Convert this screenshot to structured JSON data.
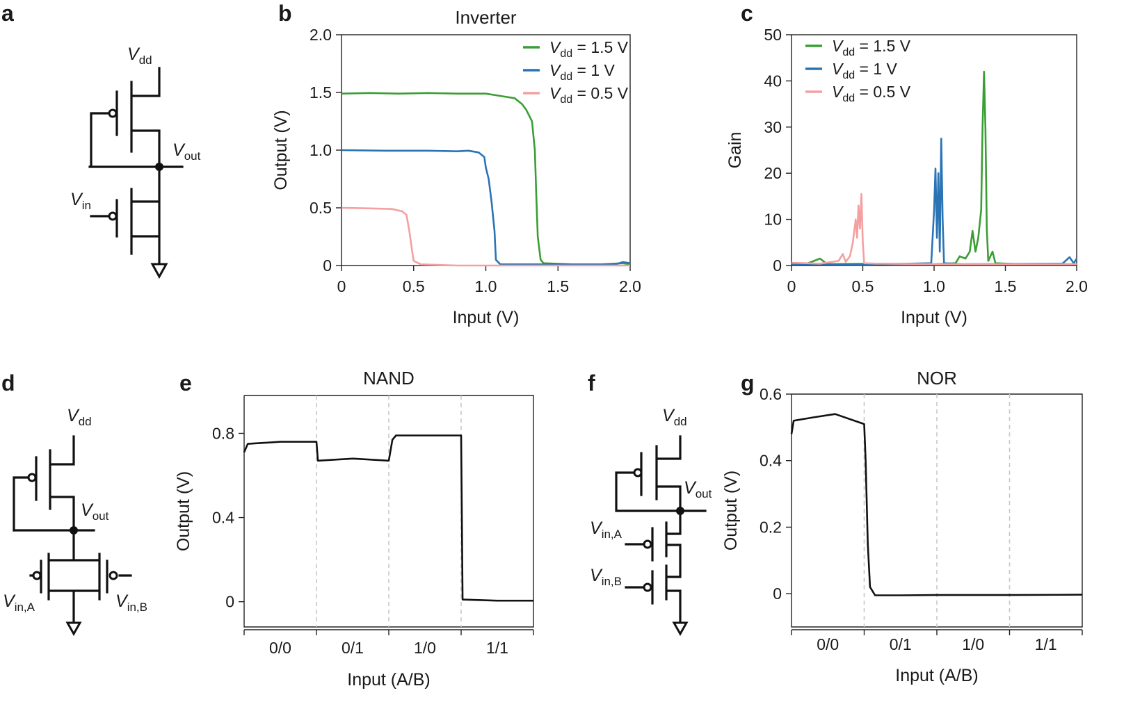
{
  "panels": {
    "a": "a",
    "b": "b",
    "c": "c",
    "d": "d",
    "e": "e",
    "f": "f",
    "g": "g"
  },
  "circuits": {
    "vdd": "V",
    "vdd_sub": "dd",
    "vout": "V",
    "vout_sub": "out",
    "vin": "V",
    "vin_sub": "in",
    "vin_a_sub": "in,A",
    "vin_b_sub": "in,B"
  },
  "colors": {
    "green": "#3a9e34",
    "blue": "#2a74b4",
    "pink": "#f4a0a0",
    "black": "#111111"
  },
  "chart_data": [
    {
      "id": "b",
      "type": "line",
      "title": "Inverter",
      "xlabel": "Input (V)",
      "ylabel": "Output (V)",
      "xlim": [
        0,
        2.0
      ],
      "ylim": [
        0,
        2.0
      ],
      "xticks": [
        "0",
        "0.5",
        "1.0",
        "1.5",
        "2.0"
      ],
      "yticks": [
        "0",
        "0.5",
        "1.0",
        "1.5",
        "2.0"
      ],
      "legend_position": "top-right",
      "series": [
        {
          "name": "V",
          "name_sub": "dd",
          "name_tail": " = 1.5 V",
          "color": "#3a9e34",
          "points": [
            [
              0,
              1.49
            ],
            [
              0.2,
              1.495
            ],
            [
              0.4,
              1.49
            ],
            [
              0.6,
              1.495
            ],
            [
              0.8,
              1.49
            ],
            [
              1.0,
              1.49
            ],
            [
              1.1,
              1.47
            ],
            [
              1.2,
              1.45
            ],
            [
              1.25,
              1.4
            ],
            [
              1.28,
              1.35
            ],
            [
              1.32,
              1.25
            ],
            [
              1.34,
              1.0
            ],
            [
              1.35,
              0.6
            ],
            [
              1.36,
              0.25
            ],
            [
              1.38,
              0.05
            ],
            [
              1.4,
              0.02
            ],
            [
              1.6,
              0.01
            ],
            [
              1.8,
              0.01
            ],
            [
              1.95,
              0.02
            ],
            [
              2.0,
              0.01
            ]
          ]
        },
        {
          "name": "V",
          "name_sub": "dd",
          "name_tail": " = 1 V",
          "color": "#2a74b4",
          "points": [
            [
              0,
              1.0
            ],
            [
              0.3,
              0.995
            ],
            [
              0.6,
              0.995
            ],
            [
              0.8,
              0.99
            ],
            [
              0.88,
              0.995
            ],
            [
              0.95,
              0.98
            ],
            [
              0.99,
              0.94
            ],
            [
              1.0,
              0.85
            ],
            [
              1.02,
              0.75
            ],
            [
              1.04,
              0.55
            ],
            [
              1.06,
              0.3
            ],
            [
              1.07,
              0.05
            ],
            [
              1.1,
              0.01
            ],
            [
              1.3,
              0.01
            ],
            [
              1.6,
              0.01
            ],
            [
              1.9,
              0.01
            ],
            [
              1.95,
              0.03
            ],
            [
              2.0,
              0.02
            ]
          ]
        },
        {
          "name": "V",
          "name_sub": "dd",
          "name_tail": " = 0.5 V",
          "color": "#f4a0a0",
          "points": [
            [
              0,
              0.5
            ],
            [
              0.2,
              0.495
            ],
            [
              0.35,
              0.49
            ],
            [
              0.42,
              0.47
            ],
            [
              0.45,
              0.44
            ],
            [
              0.47,
              0.3
            ],
            [
              0.49,
              0.12
            ],
            [
              0.5,
              0.04
            ],
            [
              0.55,
              0.01
            ],
            [
              0.8,
              0.0
            ],
            [
              1.2,
              0.0
            ],
            [
              1.6,
              0.0
            ],
            [
              2.0,
              0.0
            ]
          ]
        }
      ]
    },
    {
      "id": "c",
      "type": "line",
      "title": "",
      "xlabel": "Input (V)",
      "ylabel": "Gain",
      "xlim": [
        0,
        2.0
      ],
      "ylim": [
        0,
        50
      ],
      "xticks": [
        "0",
        "0.5",
        "1.0",
        "1.5",
        "2.0"
      ],
      "yticks": [
        "0",
        "10",
        "20",
        "30",
        "40",
        "50"
      ],
      "legend_position": "top-left",
      "series": [
        {
          "name": "V",
          "name_sub": "dd",
          "name_tail": " = 1.5 V",
          "color": "#3a9e34",
          "points": [
            [
              0,
              0.5
            ],
            [
              0.1,
              0.3
            ],
            [
              0.2,
              1.5
            ],
            [
              0.25,
              0.3
            ],
            [
              0.6,
              0.4
            ],
            [
              1.0,
              0.3
            ],
            [
              1.15,
              0.5
            ],
            [
              1.18,
              2.0
            ],
            [
              1.22,
              1.5
            ],
            [
              1.25,
              3.0
            ],
            [
              1.27,
              7.5
            ],
            [
              1.29,
              3.0
            ],
            [
              1.31,
              6.0
            ],
            [
              1.33,
              12.0
            ],
            [
              1.34,
              30.0
            ],
            [
              1.35,
              42.0
            ],
            [
              1.36,
              30.0
            ],
            [
              1.37,
              8.0
            ],
            [
              1.38,
              1.0
            ],
            [
              1.41,
              3.0
            ],
            [
              1.43,
              0.5
            ],
            [
              1.6,
              0.3
            ],
            [
              2.0,
              0.3
            ]
          ]
        },
        {
          "name": "V",
          "name_sub": "dd",
          "name_tail": " = 1 V",
          "color": "#2a74b4",
          "points": [
            [
              0,
              0.3
            ],
            [
              0.5,
              0.2
            ],
            [
              0.98,
              0.5
            ],
            [
              1.0,
              12.0
            ],
            [
              1.01,
              21.0
            ],
            [
              1.02,
              6.0
            ],
            [
              1.03,
              20.0
            ],
            [
              1.04,
              3.0
            ],
            [
              1.05,
              27.5
            ],
            [
              1.06,
              10.0
            ],
            [
              1.07,
              0.5
            ],
            [
              1.2,
              0.3
            ],
            [
              1.9,
              0.4
            ],
            [
              1.95,
              1.8
            ],
            [
              1.98,
              0.5
            ],
            [
              2.0,
              1.5
            ]
          ]
        },
        {
          "name": "V",
          "name_sub": "dd",
          "name_tail": " = 0.5 V",
          "color": "#f4a0a0",
          "points": [
            [
              0,
              0.6
            ],
            [
              0.2,
              0.4
            ],
            [
              0.33,
              1.0
            ],
            [
              0.36,
              2.5
            ],
            [
              0.38,
              0.8
            ],
            [
              0.41,
              2.0
            ],
            [
              0.43,
              5.0
            ],
            [
              0.45,
              10.0
            ],
            [
              0.46,
              6.0
            ],
            [
              0.47,
              13.0
            ],
            [
              0.48,
              8.0
            ],
            [
              0.49,
              15.5
            ],
            [
              0.5,
              5.0
            ],
            [
              0.51,
              0.5
            ],
            [
              0.6,
              0.4
            ],
            [
              1.0,
              0.3
            ],
            [
              2.0,
              0.3
            ]
          ]
        }
      ]
    },
    {
      "id": "e",
      "type": "line",
      "title": "NAND",
      "xlabel": "Input (A/B)",
      "ylabel": "Output (V)",
      "xlim": [
        0,
        4
      ],
      "ylim": [
        -0.12,
        0.98
      ],
      "yticks": [
        "0",
        "0.4",
        "0.8"
      ],
      "categories": [
        "0/0",
        "0/1",
        "1/0",
        "1/1"
      ],
      "series": [
        {
          "name": "output",
          "color": "#111111",
          "points": [
            [
              0,
              0.71
            ],
            [
              0.05,
              0.75
            ],
            [
              0.5,
              0.76
            ],
            [
              1.0,
              0.76
            ],
            [
              1.02,
              0.67
            ],
            [
              1.5,
              0.68
            ],
            [
              2.0,
              0.67
            ],
            [
              2.05,
              0.77
            ],
            [
              2.1,
              0.79
            ],
            [
              2.5,
              0.79
            ],
            [
              3.0,
              0.79
            ],
            [
              3.02,
              0.01
            ],
            [
              3.5,
              0.005
            ],
            [
              4.0,
              0.005
            ]
          ]
        }
      ]
    },
    {
      "id": "g",
      "type": "line",
      "title": "NOR",
      "xlabel": "Input (A/B)",
      "ylabel": "Output (V)",
      "xlim": [
        0,
        4
      ],
      "ylim": [
        -0.1,
        0.6
      ],
      "yticks": [
        "0",
        "0.2",
        "0.4",
        "0.6"
      ],
      "categories": [
        "0/0",
        "0/1",
        "1/0",
        "1/1"
      ],
      "series": [
        {
          "name": "output",
          "color": "#111111",
          "points": [
            [
              0,
              0.48
            ],
            [
              0.03,
              0.52
            ],
            [
              0.3,
              0.53
            ],
            [
              0.6,
              0.54
            ],
            [
              1.0,
              0.51
            ],
            [
              1.02,
              0.4
            ],
            [
              1.05,
              0.15
            ],
            [
              1.08,
              0.02
            ],
            [
              1.15,
              -0.005
            ],
            [
              1.5,
              -0.005
            ],
            [
              2.0,
              -0.004
            ],
            [
              3.0,
              -0.004
            ],
            [
              4.0,
              -0.003
            ]
          ]
        }
      ]
    }
  ]
}
